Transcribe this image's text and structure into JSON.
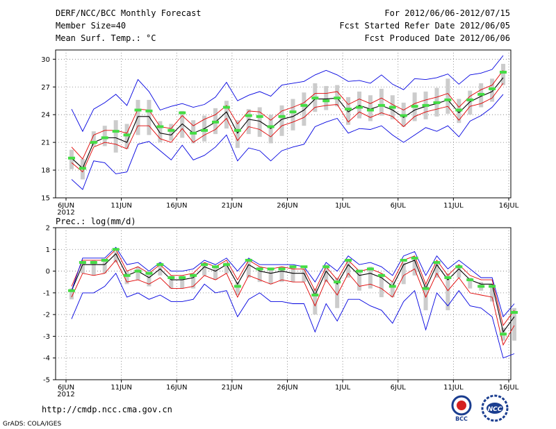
{
  "header": {
    "left": [
      "DERF/NCC/BCC Monthly Forecast",
      "Member Size=40",
      "Mean Surf. Temp.: °C"
    ],
    "right": [
      "For 2012/06/06-2012/07/15",
      "Fcst Started Refer Date 2012/06/05",
      "Fcst Produced Date 2012/06/06"
    ]
  },
  "footer": {
    "url": "http://cmdp.ncc.cma.gov.cn",
    "credit": "GrADS: COLA/IGES"
  },
  "logos": {
    "bcc": "BCC",
    "ncc": "NCC"
  },
  "colors": {
    "mean": "#000000",
    "inner": "#e00000",
    "outer": "#0000e0",
    "box": "#cccccc",
    "obs": "#44dd44"
  },
  "chart_data": [
    {
      "type": "line",
      "title": "Mean Surf. Temp.: °C",
      "ylabel": "°C",
      "ylim": [
        15,
        31
      ],
      "yticks": [
        15,
        18,
        21,
        24,
        27,
        30
      ],
      "xticks": [
        {
          "day": 0,
          "label": "6JUN",
          "sub": "2012"
        },
        {
          "day": 5,
          "label": "11JUN"
        },
        {
          "day": 10,
          "label": "16JUN"
        },
        {
          "day": 15,
          "label": "21JUN"
        },
        {
          "day": 20,
          "label": "26JUN"
        },
        {
          "day": 25,
          "label": "1JUL"
        },
        {
          "day": 30,
          "label": "6JUL"
        },
        {
          "day": 35,
          "label": "11JUL"
        },
        {
          "day": 40,
          "label": "16JUL"
        }
      ],
      "series": [
        {
          "name": "ensemble mean",
          "values": [
            19.3,
            18.2,
            21.0,
            21.5,
            21.5,
            21.0,
            23.8,
            23.8,
            22.0,
            21.8,
            23.0,
            22.0,
            22.5,
            23.2,
            24.3,
            22.0,
            23.5,
            23.3,
            22.5,
            23.5,
            23.8,
            24.5,
            25.7,
            25.7,
            25.8,
            24.3,
            25.0,
            24.6,
            25.0,
            24.5,
            23.7,
            24.5,
            24.9,
            25.2,
            25.6,
            24.2,
            25.4,
            26.0,
            26.5,
            28.0
          ]
        },
        {
          "name": "upper inner",
          "values": [
            20.5,
            19.2,
            21.8,
            22.3,
            22.3,
            22.0,
            24.6,
            24.5,
            22.7,
            22.5,
            23.9,
            22.8,
            23.5,
            24.0,
            25.0,
            23.0,
            24.4,
            24.3,
            23.4,
            24.4,
            24.8,
            25.3,
            26.3,
            26.3,
            26.5,
            25.1,
            25.7,
            25.2,
            25.8,
            25.1,
            24.5,
            25.2,
            25.6,
            25.9,
            26.3,
            24.8,
            26.0,
            26.7,
            27.2,
            28.8
          ]
        },
        {
          "name": "lower inner",
          "values": [
            18.8,
            17.8,
            20.5,
            21.0,
            20.8,
            20.3,
            22.8,
            22.8,
            21.4,
            21.0,
            22.5,
            21.0,
            21.8,
            22.4,
            23.6,
            21.2,
            22.7,
            22.4,
            21.6,
            22.8,
            23.2,
            23.7,
            24.8,
            25.0,
            25.1,
            23.2,
            24.3,
            23.7,
            24.2,
            23.8,
            22.7,
            23.8,
            24.3,
            24.6,
            24.9,
            23.4,
            24.9,
            25.2,
            25.8,
            27.4
          ]
        },
        {
          "name": "ensemble max",
          "values": [
            24.6,
            22.2,
            24.6,
            25.3,
            26.2,
            25.0,
            27.8,
            26.5,
            24.5,
            24.9,
            25.2,
            24.8,
            25.1,
            25.9,
            27.5,
            25.5,
            26.1,
            26.5,
            26.0,
            27.2,
            27.4,
            27.6,
            28.3,
            28.8,
            28.3,
            27.6,
            27.7,
            27.4,
            28.3,
            27.3,
            26.7,
            27.9,
            27.8,
            28.0,
            28.4,
            27.3,
            28.3,
            28.5,
            28.9,
            30.4
          ]
        },
        {
          "name": "ensemble min",
          "values": [
            17.0,
            15.9,
            19.0,
            18.8,
            17.6,
            17.8,
            20.8,
            21.1,
            20.1,
            19.1,
            20.7,
            19.1,
            19.6,
            20.5,
            21.8,
            19.0,
            20.4,
            20.1,
            19.0,
            20.1,
            20.5,
            20.8,
            22.7,
            23.2,
            23.6,
            22.0,
            22.5,
            22.4,
            22.8,
            21.8,
            21.0,
            21.8,
            22.6,
            22.2,
            22.8,
            21.6,
            23.3,
            23.9,
            24.8,
            26.2
          ]
        },
        {
          "name": "obs",
          "values": [
            19.3,
            18.2,
            21.0,
            21.5,
            22.2,
            21.8,
            24.5,
            24.4,
            22.7,
            22.3,
            24.2,
            22.0,
            22.3,
            23.2,
            24.8,
            22.3,
            23.9,
            23.8,
            22.7,
            23.8,
            24.3,
            25.0,
            25.8,
            25.5,
            25.8,
            24.6,
            24.8,
            24.5,
            25.0,
            24.8,
            23.9,
            24.9,
            25.0,
            25.3,
            25.6,
            24.5,
            25.6,
            26.2,
            26.8,
            28.6
          ]
        }
      ],
      "boxes": {
        "low": [
          18.1,
          17.0,
          20.6,
          20.6,
          19.9,
          20.3,
          21.8,
          21.8,
          21.0,
          21.2,
          21.5,
          20.9,
          21.1,
          21.9,
          22.5,
          20.4,
          21.9,
          21.6,
          20.9,
          21.7,
          22.3,
          22.8,
          24.3,
          24.5,
          24.9,
          22.9,
          23.6,
          23.3,
          23.9,
          23.5,
          22.7,
          23.3,
          23.5,
          23.8,
          24.1,
          23.1,
          24.0,
          24.8,
          25.4,
          27.2
        ],
        "high": [
          20.2,
          19.2,
          22.2,
          22.8,
          23.4,
          23.0,
          25.6,
          25.6,
          23.3,
          23.0,
          24.4,
          23.4,
          23.9,
          24.7,
          25.5,
          23.4,
          24.6,
          24.8,
          24.0,
          25.0,
          25.7,
          26.4,
          27.4,
          27.1,
          27.2,
          25.9,
          26.5,
          26.1,
          26.8,
          26.1,
          25.3,
          26.4,
          26.5,
          26.9,
          27.9,
          25.7,
          26.6,
          27.4,
          27.9,
          29.5
        ]
      }
    },
    {
      "type": "line",
      "title": "Prec.: log(mm/d)",
      "ylabel": "log(mm/d)",
      "ylim": [
        -5,
        2
      ],
      "yticks": [
        -5,
        -4,
        -3,
        -2,
        -1,
        0,
        1,
        2
      ],
      "xticks": [
        {
          "day": 0,
          "label": "6JUN",
          "sub": "2012"
        },
        {
          "day": 5,
          "label": "11JUN"
        },
        {
          "day": 10,
          "label": "16JUN"
        },
        {
          "day": 15,
          "label": "21JUN"
        },
        {
          "day": 20,
          "label": "26JUN"
        },
        {
          "day": 25,
          "label": "1JUL"
        },
        {
          "day": 30,
          "label": "6JUL"
        },
        {
          "day": 35,
          "label": "11JUL"
        },
        {
          "day": 40,
          "label": "16JUL"
        }
      ],
      "series": [
        {
          "name": "ensemble mean",
          "values": [
            -0.9,
            0.3,
            0.3,
            0.3,
            0.8,
            -0.2,
            0.0,
            -0.3,
            0.1,
            -0.4,
            -0.4,
            -0.3,
            0.2,
            0.0,
            0.3,
            -0.6,
            0.3,
            0.0,
            -0.1,
            0.0,
            -0.1,
            -0.1,
            -1.1,
            0.0,
            -0.6,
            0.3,
            -0.2,
            -0.1,
            -0.3,
            -0.7,
            0.3,
            0.5,
            -0.8,
            0.3,
            -0.4,
            0.1,
            -0.4,
            -0.6,
            -0.6,
            -2.8,
            -2.1
          ]
        },
        {
          "name": "upper inner",
          "values": [
            -0.7,
            0.5,
            0.5,
            0.5,
            1.0,
            0.0,
            0.2,
            -0.1,
            0.3,
            -0.2,
            -0.2,
            -0.1,
            0.4,
            0.2,
            0.5,
            -0.4,
            0.5,
            0.2,
            0.1,
            0.2,
            0.1,
            0.1,
            -0.9,
            0.2,
            -0.4,
            0.5,
            0.0,
            0.1,
            -0.1,
            -0.5,
            0.5,
            0.7,
            -0.6,
            0.5,
            -0.2,
            0.3,
            -0.2,
            -0.4,
            -0.4,
            -2.5,
            -1.8
          ]
        },
        {
          "name": "lower inner",
          "values": [
            -1.2,
            -0.1,
            -0.2,
            -0.1,
            0.5,
            -0.5,
            -0.4,
            -0.6,
            -0.3,
            -0.8,
            -0.8,
            -0.7,
            -0.2,
            -0.4,
            -0.1,
            -1.2,
            -0.2,
            -0.4,
            -0.6,
            -0.4,
            -0.5,
            -0.5,
            -1.6,
            -0.4,
            -1.1,
            -0.1,
            -0.7,
            -0.6,
            -0.8,
            -1.2,
            -0.2,
            0.1,
            -1.2,
            -0.1,
            -0.9,
            -0.3,
            -1.0,
            -1.1,
            -1.2,
            -3.4,
            -2.5
          ]
        },
        {
          "name": "ensemble max",
          "values": [
            -0.9,
            0.6,
            0.6,
            0.6,
            1.1,
            0.3,
            0.4,
            0.0,
            0.4,
            0.0,
            0.0,
            0.1,
            0.5,
            0.3,
            0.6,
            0.0,
            0.6,
            0.3,
            0.3,
            0.3,
            0.3,
            0.2,
            -0.5,
            0.4,
            0.0,
            0.7,
            0.3,
            0.4,
            0.2,
            -0.2,
            0.7,
            0.9,
            -0.2,
            0.7,
            0.1,
            0.5,
            0.1,
            -0.3,
            -0.3,
            -2.1,
            -1.5
          ]
        },
        {
          "name": "ensemble min",
          "values": [
            -2.2,
            -1.0,
            -1.0,
            -0.7,
            -0.1,
            -1.2,
            -1.0,
            -1.3,
            -1.1,
            -1.4,
            -1.4,
            -1.3,
            -0.6,
            -1.0,
            -0.9,
            -2.1,
            -1.3,
            -1.0,
            -1.4,
            -1.4,
            -1.5,
            -1.5,
            -2.8,
            -1.5,
            -2.3,
            -1.3,
            -1.3,
            -1.6,
            -1.8,
            -2.4,
            -1.4,
            -0.9,
            -2.7,
            -1.0,
            -1.6,
            -0.9,
            -1.6,
            -1.7,
            -2.1,
            -4.0,
            -3.8
          ]
        },
        {
          "name": "obs",
          "values": [
            -0.9,
            0.4,
            0.4,
            0.5,
            1.0,
            -0.2,
            0.0,
            -0.1,
            0.3,
            -0.3,
            -0.3,
            -0.2,
            0.3,
            0.2,
            0.3,
            -0.7,
            0.5,
            0.1,
            0.1,
            0.1,
            0.2,
            0.2,
            -1.1,
            0.2,
            -0.5,
            0.5,
            0.0,
            0.1,
            -0.2,
            -0.7,
            0.5,
            0.6,
            -0.8,
            0.4,
            -0.3,
            0.2,
            -0.4,
            -0.7,
            -0.7,
            -2.9,
            -1.9
          ]
        }
      ],
      "boxes": {
        "low": [
          -1.3,
          -0.1,
          -0.2,
          -0.1,
          0.4,
          -0.6,
          -0.4,
          -0.7,
          -0.2,
          -0.8,
          -0.8,
          -0.8,
          -0.2,
          -0.4,
          -0.1,
          -1.1,
          -0.3,
          -0.5,
          -0.6,
          -0.5,
          -0.5,
          -0.5,
          -2.0,
          -0.5,
          -1.7,
          -0.3,
          -0.9,
          -0.8,
          -1.2,
          -1.2,
          -0.6,
          -0.2,
          -1.8,
          -0.3,
          -1.8,
          -0.3,
          -0.8,
          -0.9,
          -1.4,
          -3.2,
          -3.2
        ],
        "high": [
          -0.8,
          0.4,
          0.5,
          0.5,
          0.9,
          0.0,
          0.2,
          -0.1,
          0.4,
          -0.2,
          -0.2,
          -0.1,
          0.4,
          0.2,
          0.4,
          -0.5,
          0.5,
          0.2,
          0.1,
          0.2,
          0.2,
          0.1,
          -0.8,
          0.3,
          -0.3,
          0.5,
          0.0,
          0.2,
          -0.1,
          -0.5,
          0.4,
          0.6,
          -0.6,
          0.4,
          -0.1,
          0.3,
          -0.3,
          -0.5,
          -0.6,
          -2.6,
          -1.7
        ]
      }
    }
  ]
}
